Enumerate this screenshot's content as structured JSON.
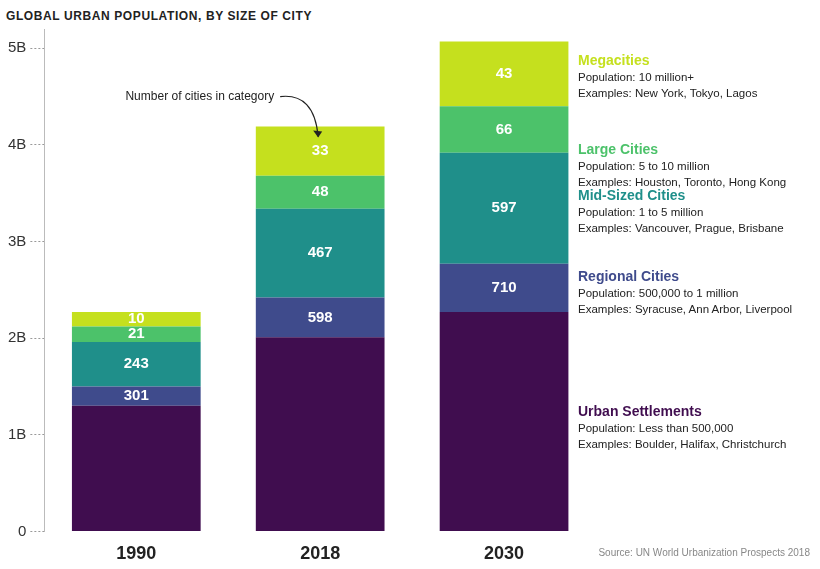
{
  "chart_data": {
    "type": "bar",
    "title": "GLOBAL URBAN POPULATION, BY SIZE OF CITY",
    "categories": [
      "1990",
      "2018",
      "2030"
    ],
    "stacked": true,
    "grid": false,
    "legend": "right",
    "ylim": [
      0,
      5.2
    ],
    "yticks": [
      0,
      {
        "value": 1,
        "label": "1B"
      },
      {
        "value": 2,
        "label": "2B"
      },
      {
        "value": 3,
        "label": "3B"
      },
      {
        "value": 4,
        "label": "4B"
      },
      {
        "value": 5,
        "label": "5B"
      }
    ],
    "series": [
      {
        "name": "Urban Settlements",
        "color": "#400d4f",
        "values": [
          1.3,
          2.01,
          2.27
        ],
        "cities": null,
        "population": "Population: Less than 500,000",
        "examples": "Examples: Boulder, Halifax, Christchurch"
      },
      {
        "name": "Regional Cities",
        "color": "#3f4b8c",
        "values": [
          0.2,
          0.41,
          0.5
        ],
        "cities": [
          301,
          598,
          710
        ],
        "population": "Population: 500,000 to 1 million",
        "examples": "Examples: Syracuse, Ann Arbor, Liverpool"
      },
      {
        "name": "Mid-Sized Cities",
        "color": "#1f8f8a",
        "values": [
          0.46,
          0.92,
          1.15
        ],
        "cities": [
          243,
          467,
          597
        ],
        "population": "Population: 1 to 5 million",
        "examples": "Examples: Vancouver, Prague, Brisbane"
      },
      {
        "name": "Large Cities",
        "color": "#4cc26a",
        "values": [
          0.16,
          0.34,
          0.48
        ],
        "cities": [
          21,
          48,
          66
        ],
        "population": "Population: 5 to 10 million",
        "examples": "Examples: Houston, Toronto, Hong Kong"
      },
      {
        "name": "Megacities",
        "color": "#c5e01e",
        "values": [
          0.15,
          0.51,
          0.67
        ],
        "cities": [
          10,
          33,
          43
        ],
        "population": "Population: 10 million+",
        "examples": "Examples: New York, Tokyo, Lagos"
      }
    ],
    "annotations": [
      {
        "text": "Number of cities in category",
        "series": "Megacities",
        "category": "2018"
      }
    ],
    "source": "Source: UN World Urbanization Prospects 2018"
  }
}
